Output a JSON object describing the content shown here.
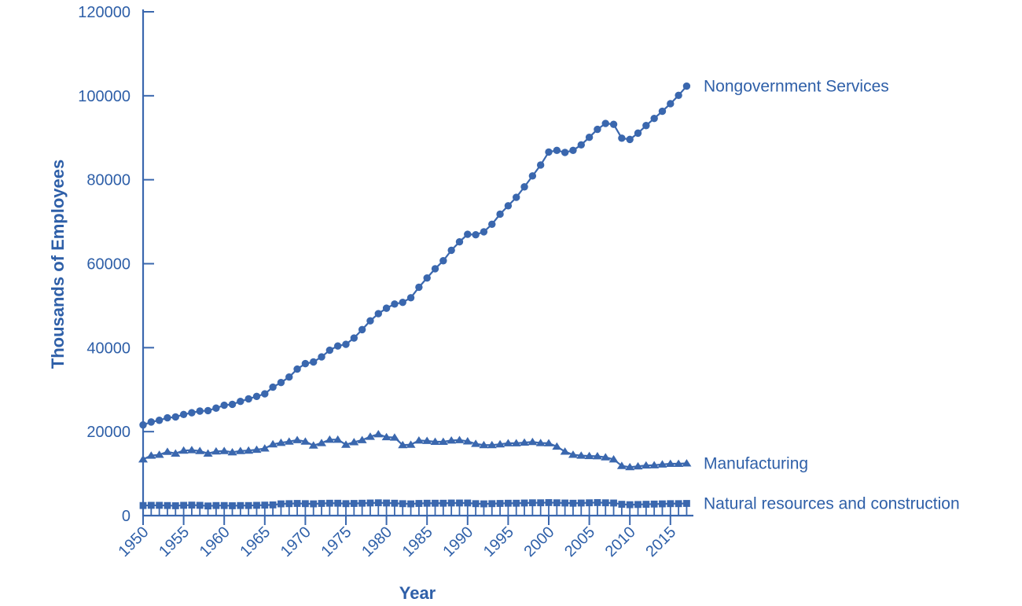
{
  "colors": {
    "series": "#3a67ae",
    "axis": "#3a67ae",
    "text": "#2e5fa8",
    "background": "#ffffff"
  },
  "chart_data": {
    "type": "line",
    "title": "",
    "xlabel": "Year",
    "ylabel": "Thousands of Employees",
    "grid": false,
    "legend_position": "direct-labels-right",
    "ylim": [
      0,
      120000
    ],
    "xlim": [
      1950,
      2017
    ],
    "yticks": [
      0,
      20000,
      40000,
      60000,
      80000,
      100000,
      120000
    ],
    "ytick_labels": [
      "0",
      "20000",
      "40000",
      "60000",
      "80000",
      "100000",
      "120000"
    ],
    "xticks": [
      1950,
      1955,
      1960,
      1965,
      1970,
      1975,
      1980,
      1985,
      1990,
      1995,
      2000,
      2005,
      2010,
      2015
    ],
    "xtick_labels": [
      "1950",
      "1955",
      "1960",
      "1965",
      "1970",
      "1975",
      "1980",
      "1985",
      "1990",
      "1995",
      "2000",
      "2005",
      "2010",
      "2015"
    ],
    "minor_xticks_every_year": true,
    "x": [
      1950,
      1951,
      1952,
      1953,
      1954,
      1955,
      1956,
      1957,
      1958,
      1959,
      1960,
      1961,
      1962,
      1963,
      1964,
      1965,
      1966,
      1967,
      1968,
      1969,
      1970,
      1971,
      1972,
      1973,
      1974,
      1975,
      1976,
      1977,
      1978,
      1979,
      1980,
      1981,
      1982,
      1983,
      1984,
      1985,
      1986,
      1987,
      1988,
      1989,
      1990,
      1991,
      1992,
      1993,
      1994,
      1995,
      1996,
      1997,
      1998,
      1999,
      2000,
      2001,
      2002,
      2003,
      2004,
      2005,
      2006,
      2007,
      2008,
      2009,
      2010,
      2011,
      2012,
      2013,
      2014,
      2015,
      2016,
      2017
    ],
    "series": [
      {
        "name": "Nongovernment Services",
        "marker": "circle",
        "values": [
          21600,
          22300,
          22700,
          23300,
          23500,
          24100,
          24500,
          24900,
          25000,
          25600,
          26300,
          26500,
          27200,
          27800,
          28400,
          29000,
          30600,
          31700,
          33000,
          34900,
          36200,
          36600,
          37800,
          39400,
          40400,
          40800,
          42300,
          44300,
          46400,
          48100,
          49400,
          50400,
          50800,
          51900,
          54400,
          56600,
          58800,
          60700,
          63200,
          65200,
          67000,
          66900,
          67600,
          69400,
          71800,
          73800,
          75800,
          78300,
          80900,
          83500,
          86600,
          87000,
          86500,
          87000,
          88300,
          90100,
          92000,
          93400,
          93200,
          89900,
          89600,
          91100,
          92900,
          94600,
          96300,
          98100,
          100100,
          102300
        ]
      },
      {
        "name": "Manufacturing",
        "marker": "triangle",
        "values": [
          13400,
          14300,
          14500,
          15200,
          14800,
          15500,
          15600,
          15400,
          14800,
          15300,
          15400,
          15100,
          15400,
          15500,
          15700,
          16000,
          17000,
          17350,
          17650,
          18000,
          17650,
          16700,
          17300,
          18100,
          18100,
          16900,
          17500,
          18000,
          18800,
          19400,
          18700,
          18600,
          16800,
          16900,
          17900,
          17800,
          17600,
          17600,
          17900,
          18000,
          17700,
          17100,
          16800,
          16800,
          17000,
          17250,
          17250,
          17400,
          17550,
          17300,
          17250,
          16450,
          15250,
          14500,
          14300,
          14200,
          14150,
          13900,
          13400,
          11850,
          11550,
          11750,
          11950,
          12000,
          12200,
          12350,
          12350,
          12450
        ]
      },
      {
        "name": "Natural resources and construction",
        "marker": "square",
        "values": [
          2400,
          2450,
          2450,
          2400,
          2350,
          2450,
          2500,
          2450,
          2300,
          2400,
          2400,
          2350,
          2400,
          2400,
          2450,
          2500,
          2550,
          2800,
          2850,
          2900,
          2850,
          2800,
          2900,
          2950,
          2950,
          2850,
          2900,
          2950,
          3000,
          3050,
          3000,
          2950,
          2850,
          2800,
          2900,
          2950,
          2950,
          2950,
          3000,
          3000,
          3000,
          2850,
          2800,
          2850,
          2900,
          2950,
          2950,
          3000,
          3050,
          3050,
          3100,
          3050,
          3000,
          2950,
          3000,
          3050,
          3100,
          3050,
          3000,
          2700,
          2600,
          2650,
          2700,
          2750,
          2800,
          2850,
          2850,
          2900
        ]
      }
    ]
  }
}
